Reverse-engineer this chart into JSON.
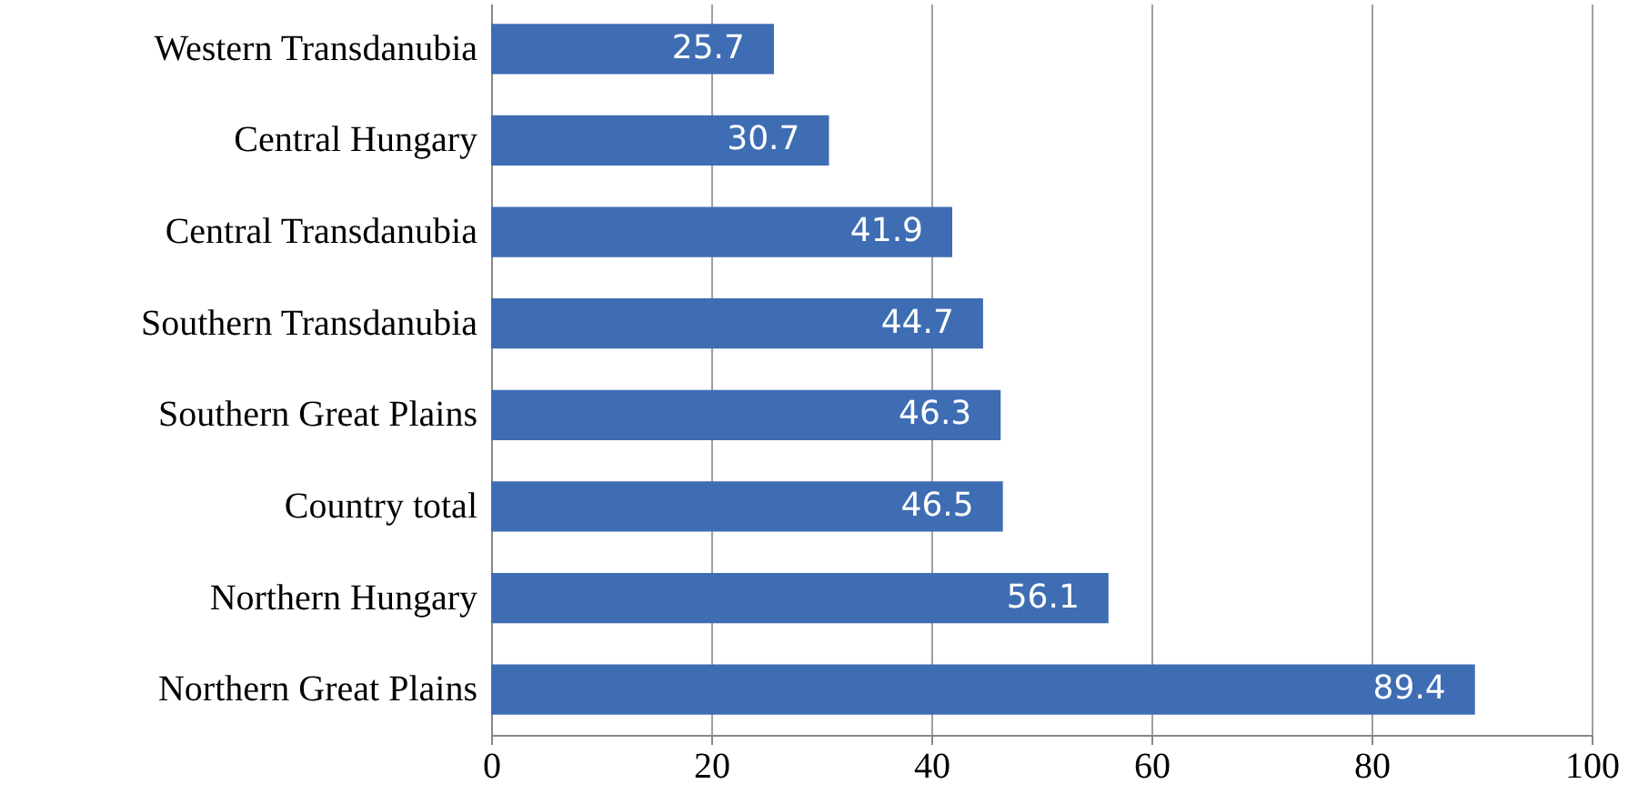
{
  "chart_data": {
    "type": "bar",
    "orientation": "horizontal",
    "categories": [
      "Western Transdanubia",
      "Central Hungary",
      "Central Transdanubia",
      "Southern Transdanubia",
      "Southern Great Plains",
      "Country total",
      "Northern Hungary",
      "Northern Great Plains"
    ],
    "values": [
      25.7,
      30.7,
      41.9,
      44.7,
      46.3,
      46.5,
      56.1,
      89.4
    ],
    "color": "#3e6db3",
    "xlim": [
      0,
      100
    ],
    "xticks": [
      0,
      20,
      40,
      60,
      80,
      100
    ],
    "grid": "x",
    "data_labels": true
  }
}
